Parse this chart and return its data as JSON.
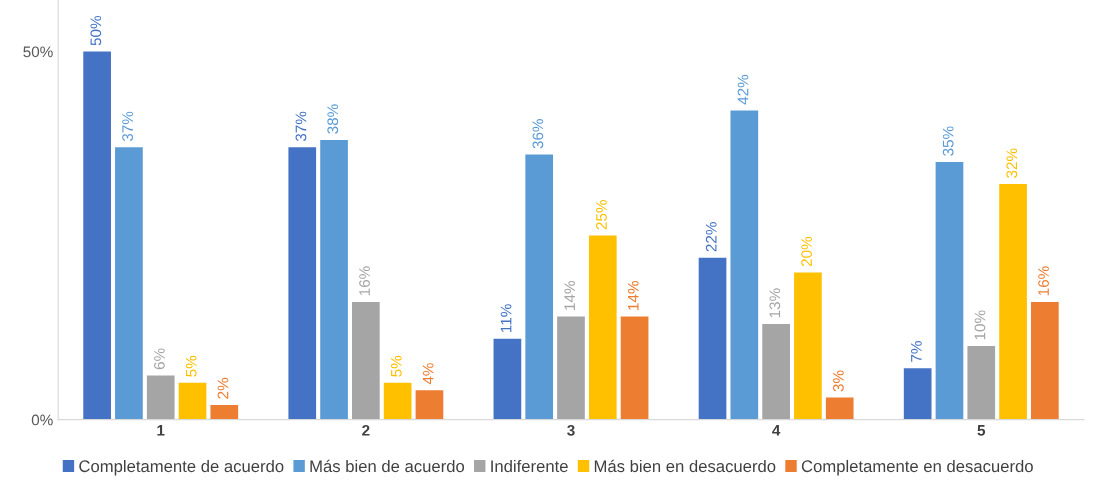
{
  "chart_data": {
    "type": "bar",
    "categories": [
      "1",
      "2",
      "3",
      "4",
      "5"
    ],
    "series": [
      {
        "name": "Completamente de acuerdo",
        "color": "#4472c4",
        "values": [
          50,
          37,
          11,
          22,
          7
        ],
        "value_labels": [
          "50%",
          "37%",
          "11%",
          "22%",
          "7%"
        ]
      },
      {
        "name": "Más bien de acuerdo",
        "color": "#5b9bd5",
        "values": [
          37,
          38,
          36,
          42,
          35
        ],
        "value_labels": [
          "37%",
          "38%",
          "36%",
          "42%",
          "35%"
        ]
      },
      {
        "name": "Indiferente",
        "color": "#a5a5a5",
        "values": [
          6,
          16,
          14,
          13,
          10
        ],
        "value_labels": [
          "6%",
          "16%",
          "14%",
          "13%",
          "10%"
        ]
      },
      {
        "name": "Más bien en desacuerdo",
        "color": "#ffc000",
        "values": [
          5,
          5,
          25,
          20,
          32
        ],
        "value_labels": [
          "5%",
          "5%",
          "25%",
          "20%",
          "32%"
        ]
      },
      {
        "name": "Completamente en desacuerdo",
        "color": "#ed7d31",
        "values": [
          2,
          4,
          14,
          3,
          16
        ],
        "value_labels": [
          "2%",
          "4%",
          "14%",
          "3%",
          "16%"
        ]
      }
    ],
    "ylim": [
      0,
      57
    ],
    "yticks": [
      {
        "value": 0,
        "label": "0%"
      },
      {
        "value": 50,
        "label": "50%"
      }
    ],
    "grid": false,
    "legend": "bottom"
  }
}
